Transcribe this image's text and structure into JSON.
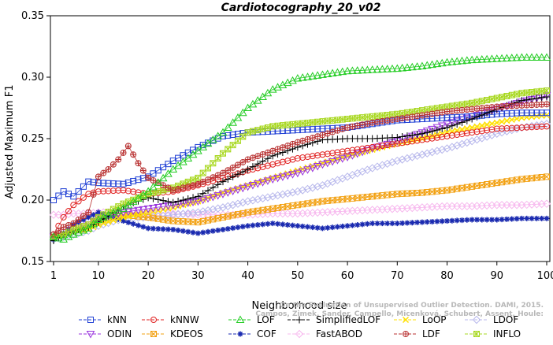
{
  "chart_data": {
    "type": "line",
    "title": "Cardiotocography_20_v02",
    "xlabel": "Neighborhood size",
    "ylabel": "Adjusted Maximum F1",
    "xlim": [
      1,
      100
    ],
    "ylim": [
      0.15,
      0.35
    ],
    "xticks": [
      1,
      10,
      20,
      30,
      40,
      50,
      60,
      70,
      80,
      90,
      100
    ],
    "yticks": [
      0.15,
      0.2,
      0.25,
      0.3,
      0.35
    ],
    "ytick_labels": [
      "0.15",
      "0.20",
      "0.25",
      "0.30",
      "0.35"
    ],
    "grid": false,
    "legend_position": "bottom",
    "watermark_lines": [
      "Campos, Zimek, Sander, Campello, Micenková, Schubert, Assent, Houle:",
      "On the Evaluation of Unsupervised Outlier Detection. DAMI, 2015."
    ],
    "series": [
      {
        "name": "kNN",
        "color": "#1f3fd4",
        "marker": "square",
        "x": [
          1,
          3,
          5,
          8,
          10,
          15,
          20,
          25,
          30,
          35,
          40,
          45,
          50,
          55,
          60,
          65,
          70,
          75,
          80,
          85,
          90,
          95,
          100
        ],
        "y": [
          0.2,
          0.207,
          0.203,
          0.215,
          0.214,
          0.213,
          0.219,
          0.232,
          0.243,
          0.252,
          0.255,
          0.256,
          0.257,
          0.258,
          0.259,
          0.262,
          0.265,
          0.266,
          0.267,
          0.268,
          0.27,
          0.271,
          0.271
        ]
      },
      {
        "name": "kNNW",
        "color": "#e02020",
        "marker": "circle",
        "x": [
          1,
          3,
          5,
          8,
          10,
          15,
          20,
          25,
          30,
          35,
          40,
          45,
          50,
          55,
          60,
          65,
          70,
          75,
          80,
          85,
          90,
          95,
          100
        ],
        "y": [
          0.172,
          0.186,
          0.196,
          0.205,
          0.207,
          0.208,
          0.205,
          0.207,
          0.212,
          0.218,
          0.224,
          0.229,
          0.234,
          0.237,
          0.24,
          0.243,
          0.246,
          0.249,
          0.252,
          0.255,
          0.258,
          0.259,
          0.26
        ]
      },
      {
        "name": "LOF",
        "color": "#22cc22",
        "marker": "triangle-up",
        "x": [
          1,
          3,
          5,
          8,
          10,
          15,
          20,
          25,
          30,
          35,
          40,
          45,
          50,
          55,
          60,
          65,
          70,
          75,
          80,
          85,
          90,
          95,
          100
        ],
        "y": [
          0.17,
          0.168,
          0.172,
          0.177,
          0.184,
          0.193,
          0.207,
          0.225,
          0.24,
          0.255,
          0.275,
          0.29,
          0.299,
          0.302,
          0.305,
          0.306,
          0.307,
          0.309,
          0.312,
          0.314,
          0.315,
          0.316,
          0.316
        ]
      },
      {
        "name": "SimplifiedLOF",
        "color": "#000000",
        "marker": "plus",
        "x": [
          1,
          3,
          5,
          8,
          10,
          15,
          20,
          25,
          30,
          35,
          40,
          45,
          50,
          55,
          60,
          65,
          70,
          75,
          80,
          85,
          90,
          95,
          100
        ],
        "y": [
          0.167,
          0.172,
          0.175,
          0.178,
          0.182,
          0.195,
          0.202,
          0.198,
          0.203,
          0.215,
          0.225,
          0.236,
          0.243,
          0.249,
          0.25,
          0.25,
          0.251,
          0.254,
          0.259,
          0.266,
          0.274,
          0.281,
          0.284
        ]
      },
      {
        "name": "LoOP",
        "color": "#ffe000",
        "marker": "x",
        "x": [
          1,
          3,
          5,
          8,
          10,
          15,
          20,
          25,
          30,
          35,
          40,
          45,
          50,
          55,
          60,
          65,
          70,
          75,
          80,
          85,
          90,
          95,
          100
        ],
        "y": [
          0.17,
          0.172,
          0.174,
          0.176,
          0.18,
          0.186,
          0.19,
          0.194,
          0.199,
          0.206,
          0.212,
          0.218,
          0.224,
          0.23,
          0.236,
          0.241,
          0.246,
          0.25,
          0.255,
          0.259,
          0.263,
          0.267,
          0.269
        ]
      },
      {
        "name": "LDOF",
        "color": "#b8b8ec",
        "marker": "diamond",
        "x": [
          1,
          3,
          5,
          8,
          10,
          15,
          20,
          25,
          30,
          35,
          40,
          45,
          50,
          55,
          60,
          65,
          70,
          75,
          80,
          85,
          90,
          95,
          100
        ],
        "y": [
          0.168,
          0.17,
          0.172,
          0.175,
          0.179,
          0.185,
          0.186,
          0.188,
          0.19,
          0.194,
          0.199,
          0.203,
          0.207,
          0.212,
          0.219,
          0.226,
          0.232,
          0.237,
          0.242,
          0.248,
          0.254,
          0.259,
          0.262
        ]
      },
      {
        "name": "ODIN",
        "color": "#9933dd",
        "marker": "triangle-down",
        "x": [
          1,
          3,
          5,
          8,
          10,
          15,
          20,
          25,
          30,
          35,
          40,
          45,
          50,
          55,
          60,
          65,
          70,
          75,
          80,
          85,
          90,
          95,
          100
        ],
        "y": [
          0.17,
          0.172,
          0.176,
          0.18,
          0.185,
          0.19,
          0.193,
          0.196,
          0.199,
          0.205,
          0.211,
          0.217,
          0.222,
          0.229,
          0.235,
          0.242,
          0.248,
          0.255,
          0.262,
          0.268,
          0.274,
          0.28,
          0.285
        ]
      },
      {
        "name": "KDEOS",
        "color": "#f2a010",
        "marker": "square-x",
        "x": [
          1,
          3,
          5,
          8,
          10,
          15,
          20,
          25,
          30,
          35,
          40,
          45,
          50,
          55,
          60,
          65,
          70,
          75,
          80,
          85,
          90,
          95,
          100
        ],
        "y": [
          0.17,
          0.172,
          0.176,
          0.18,
          0.184,
          0.188,
          0.186,
          0.183,
          0.182,
          0.186,
          0.19,
          0.193,
          0.196,
          0.199,
          0.201,
          0.203,
          0.205,
          0.206,
          0.208,
          0.211,
          0.214,
          0.217,
          0.219
        ]
      },
      {
        "name": "COF",
        "color": "#1a2ab0",
        "marker": "asterisk",
        "x": [
          1,
          3,
          5,
          8,
          10,
          15,
          20,
          25,
          30,
          35,
          40,
          45,
          50,
          55,
          60,
          65,
          70,
          75,
          80,
          85,
          90,
          95,
          100
        ],
        "y": [
          0.168,
          0.173,
          0.18,
          0.186,
          0.19,
          0.183,
          0.177,
          0.176,
          0.173,
          0.176,
          0.179,
          0.181,
          0.179,
          0.177,
          0.179,
          0.181,
          0.181,
          0.182,
          0.183,
          0.184,
          0.184,
          0.185,
          0.185
        ]
      },
      {
        "name": "FastABOD",
        "color": "#f7b8ee",
        "marker": "diamond",
        "x": [
          1,
          3,
          5,
          8,
          10,
          15,
          20,
          25,
          30,
          35,
          40,
          45,
          50,
          55,
          60,
          65,
          70,
          75,
          80,
          85,
          90,
          95,
          100
        ],
        "y": [
          0.188,
          0.188,
          0.189,
          0.189,
          0.19,
          0.19,
          0.19,
          0.189,
          0.188,
          0.188,
          0.188,
          0.189,
          0.189,
          0.19,
          0.191,
          0.192,
          0.193,
          0.194,
          0.195,
          0.195,
          0.196,
          0.196,
          0.197
        ]
      },
      {
        "name": "LDF",
        "color": "#b83030",
        "marker": "circle-plus",
        "x": [
          1,
          3,
          5,
          8,
          10,
          12,
          14,
          16,
          18,
          20,
          25,
          30,
          35,
          40,
          45,
          50,
          55,
          60,
          65,
          70,
          75,
          80,
          85,
          90,
          95,
          100
        ],
        "y": [
          0.172,
          0.178,
          0.181,
          0.19,
          0.219,
          0.225,
          0.233,
          0.244,
          0.23,
          0.218,
          0.208,
          0.213,
          0.222,
          0.233,
          0.24,
          0.247,
          0.253,
          0.259,
          0.263,
          0.266,
          0.269,
          0.272,
          0.274,
          0.276,
          0.277,
          0.278
        ]
      },
      {
        "name": "INFLO",
        "color": "#a8d820",
        "marker": "square-star",
        "x": [
          1,
          3,
          5,
          8,
          10,
          15,
          20,
          25,
          30,
          35,
          40,
          45,
          50,
          55,
          60,
          65,
          70,
          75,
          80,
          85,
          90,
          95,
          100
        ],
        "y": [
          0.17,
          0.172,
          0.176,
          0.18,
          0.186,
          0.197,
          0.205,
          0.21,
          0.218,
          0.238,
          0.255,
          0.26,
          0.262,
          0.264,
          0.266,
          0.268,
          0.27,
          0.273,
          0.276,
          0.279,
          0.283,
          0.287,
          0.289
        ]
      }
    ],
    "legend_rows": [
      [
        "kNN",
        "kNNW",
        "LOF",
        "SimplifiedLOF",
        "LoOP",
        "LDOF"
      ],
      [
        "ODIN",
        "KDEOS",
        "COF",
        "FastABOD",
        "LDF",
        "INFLO"
      ]
    ]
  }
}
